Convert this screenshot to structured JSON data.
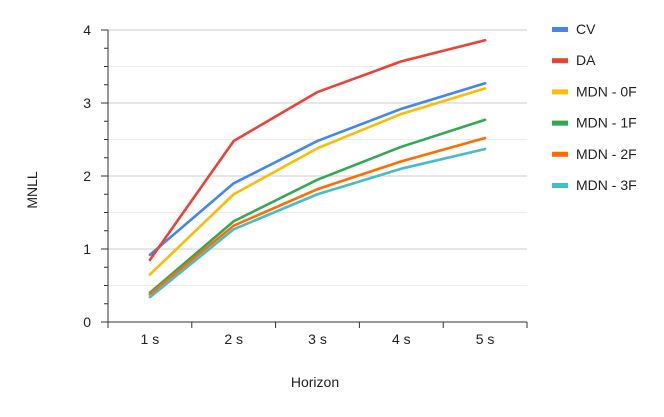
{
  "chart_data": {
    "type": "line",
    "title": "",
    "xlabel": "Horizon",
    "ylabel": "MNLL",
    "categories": [
      "1 s",
      "2 s",
      "3 s",
      "4 s",
      "5 s"
    ],
    "ylim": [
      0,
      4
    ],
    "yticks": [
      0,
      1,
      2,
      3,
      4
    ],
    "grid": true,
    "legend_position": "right",
    "series": [
      {
        "name": "CV",
        "color": "#4285F4",
        "values": [
          0.92,
          1.9,
          2.48,
          2.92,
          3.27
        ]
      },
      {
        "name": "DA",
        "color": "#EA4335",
        "values": [
          0.85,
          2.48,
          3.15,
          3.57,
          3.86
        ]
      },
      {
        "name": "MDN - 0F",
        "color": "#FBBC04",
        "values": [
          0.65,
          1.75,
          2.38,
          2.85,
          3.2
        ]
      },
      {
        "name": "MDN - 1F",
        "color": "#34A853",
        "values": [
          0.4,
          1.38,
          1.95,
          2.4,
          2.77
        ]
      },
      {
        "name": "MDN - 2F",
        "color": "#FF6D01",
        "values": [
          0.38,
          1.32,
          1.82,
          2.2,
          2.52
        ]
      },
      {
        "name": "MDN - 3F",
        "color": "#46BDC6",
        "values": [
          0.34,
          1.27,
          1.75,
          2.1,
          2.37
        ]
      }
    ]
  }
}
